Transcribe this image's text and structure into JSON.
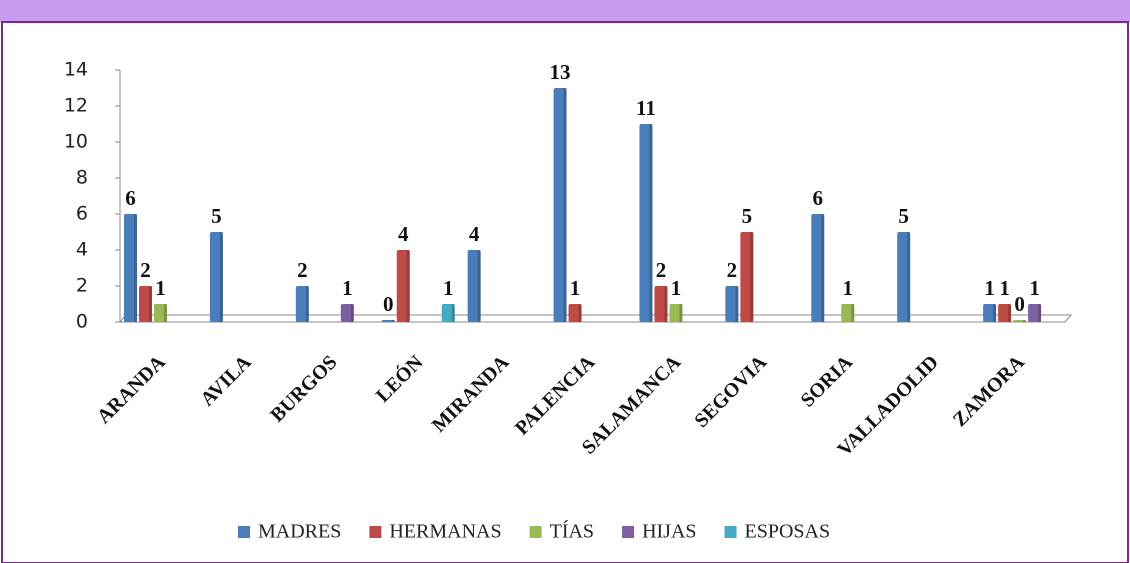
{
  "chart_data": {
    "type": "bar",
    "categories": [
      "ARANDA",
      "AVILA",
      "BURGOS",
      "LEÓN",
      "MIRANDA",
      "PALENCIA",
      "SALAMANCA",
      "SEGOVIA",
      "SORIA",
      "VALLADOLID",
      "ZAMORA"
    ],
    "series": [
      {
        "name": "MADRES",
        "color": "#4a7ebb",
        "values": [
          6,
          5,
          2,
          0,
          4,
          13,
          11,
          2,
          6,
          5,
          1
        ]
      },
      {
        "name": "HERMANAS",
        "color": "#be4b48",
        "values": [
          2,
          null,
          null,
          4,
          null,
          1,
          2,
          5,
          null,
          null,
          1
        ]
      },
      {
        "name": "TÍAS",
        "color": "#98b954",
        "values": [
          1,
          null,
          null,
          null,
          null,
          null,
          1,
          null,
          1,
          null,
          0
        ]
      },
      {
        "name": "HIJAS",
        "color": "#7d60a0",
        "values": [
          null,
          null,
          1,
          null,
          null,
          null,
          null,
          null,
          null,
          null,
          1
        ]
      },
      {
        "name": "ESPOSAS",
        "color": "#46aac5",
        "values": [
          null,
          null,
          null,
          1,
          null,
          null,
          null,
          null,
          null,
          null,
          null
        ]
      }
    ],
    "ylim": [
      0,
      14
    ],
    "yticks": [
      0,
      2,
      4,
      6,
      8,
      10,
      12,
      14
    ],
    "legend": "bottom"
  }
}
